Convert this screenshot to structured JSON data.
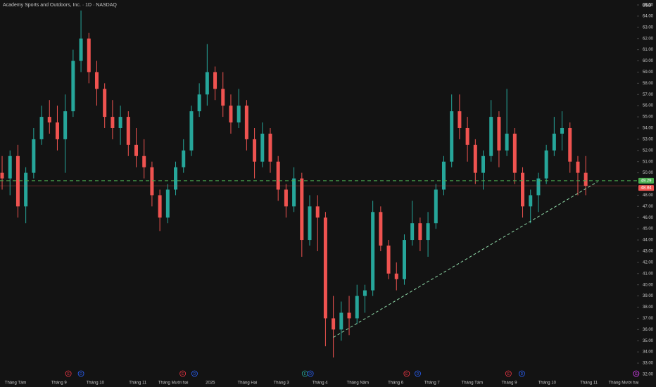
{
  "chart_data": {
    "type": "candlestick",
    "title": "Academy Sports and Outdoors, Inc. · 1D · NASDAQ",
    "currency": "USD",
    "colors": {
      "up": "#26a69a",
      "down": "#ef5350"
    },
    "ohlc": [
      [
        50,
        51.5,
        48.5,
        49.5
      ],
      [
        49.5,
        52,
        48,
        51.5
      ],
      [
        51.5,
        52.5,
        46,
        47
      ],
      [
        47,
        50.5,
        45.5,
        50
      ],
      [
        50,
        54,
        49.5,
        53
      ],
      [
        53,
        56,
        52.5,
        55
      ],
      [
        55,
        56.5,
        53.5,
        54.5
      ],
      [
        54.5,
        56,
        52,
        53
      ],
      [
        53,
        57,
        50,
        55.5
      ],
      [
        55.5,
        61,
        55,
        60
      ],
      [
        60,
        64.5,
        59,
        62
      ],
      [
        62,
        62.5,
        58,
        59
      ],
      [
        59,
        60,
        56,
        57.5
      ],
      [
        57.5,
        58,
        54,
        55
      ],
      [
        55,
        56.5,
        53,
        54
      ],
      [
        54,
        56,
        52.5,
        55
      ],
      [
        55,
        55.5,
        51.5,
        52.5
      ],
      [
        52.5,
        54,
        50.5,
        51.5
      ],
      [
        51.5,
        53,
        49.5,
        50.5
      ],
      [
        50.5,
        51,
        47,
        48
      ],
      [
        48,
        48.5,
        44.8,
        46
      ],
      [
        46,
        49,
        45.5,
        48.5
      ],
      [
        48.5,
        51,
        48,
        50.5
      ],
      [
        50.5,
        53,
        50,
        52
      ],
      [
        52,
        56,
        51.5,
        55.5
      ],
      [
        55.5,
        58,
        55,
        57
      ],
      [
        57,
        61.5,
        56,
        59
      ],
      [
        59,
        59.5,
        56.5,
        57.5
      ],
      [
        57.5,
        59,
        55,
        56
      ],
      [
        56,
        57,
        53.5,
        54.5
      ],
      [
        54.5,
        57.5,
        54,
        56
      ],
      [
        56,
        56.5,
        52,
        53
      ],
      [
        53,
        54,
        49.5,
        51
      ],
      [
        51,
        54.5,
        50.5,
        53.5
      ],
      [
        53.5,
        54,
        50,
        51
      ],
      [
        51,
        51.5,
        47.5,
        48.5
      ],
      [
        48.5,
        49,
        46,
        47
      ],
      [
        47,
        50.5,
        46.5,
        49.5
      ],
      [
        49.5,
        50,
        42.5,
        44
      ],
      [
        44,
        48,
        43.5,
        47
      ],
      [
        47,
        48,
        43,
        46
      ],
      [
        46,
        46.5,
        34.5,
        37
      ],
      [
        37,
        39,
        33.5,
        36
      ],
      [
        36,
        38.5,
        35,
        37.5
      ],
      [
        37.5,
        39,
        35.5,
        37
      ],
      [
        37,
        40,
        36.5,
        39
      ],
      [
        39,
        40,
        37.5,
        39.5
      ],
      [
        39.5,
        47.5,
        39,
        46.5
      ],
      [
        46.5,
        47,
        43,
        43.5
      ],
      [
        43.5,
        44,
        40.5,
        41
      ],
      [
        41,
        42,
        39.5,
        40.5
      ],
      [
        40.5,
        44.5,
        40,
        44
      ],
      [
        44,
        47.5,
        43.5,
        45.5
      ],
      [
        45.5,
        46,
        43,
        44
      ],
      [
        44,
        46.5,
        42.5,
        45.5
      ],
      [
        45.5,
        49,
        45,
        48.5
      ],
      [
        48.5,
        51.5,
        48,
        51
      ],
      [
        51,
        57,
        50.5,
        55.5
      ],
      [
        55.5,
        57,
        53,
        54
      ],
      [
        54,
        55,
        51,
        52.5
      ],
      [
        52.5,
        53,
        49,
        50
      ],
      [
        50,
        52,
        48.5,
        51.5
      ],
      [
        51.5,
        56.5,
        51,
        55
      ],
      [
        55,
        55.5,
        50.5,
        52
      ],
      [
        52,
        57.5,
        51.5,
        53.5
      ],
      [
        53.5,
        54,
        49,
        50
      ],
      [
        50,
        50.5,
        46,
        47
      ],
      [
        47,
        48.5,
        45.5,
        48
      ],
      [
        48,
        50,
        46.5,
        49.5
      ],
      [
        49.5,
        52.5,
        49,
        52
      ],
      [
        52,
        55,
        51.5,
        53.5
      ],
      [
        53.5,
        55.5,
        52,
        54
      ],
      [
        54,
        54.5,
        50,
        51
      ],
      [
        51,
        51.5,
        48,
        50
      ],
      [
        50,
        51.5,
        48,
        48.84
      ]
    ],
    "xlim": [
      -0.27,
      80.5
    ],
    "xticks": [
      {
        "value": 1.7,
        "label": "Tháng Tám"
      },
      {
        "value": 7.2,
        "label": "Tháng 9"
      },
      {
        "value": 11.8,
        "label": "Tháng 10"
      },
      {
        "value": 17.2,
        "label": "Tháng 11"
      },
      {
        "value": 21.7,
        "label": "Tháng Mười hai"
      },
      {
        "value": 26.4,
        "label": "2025"
      },
      {
        "value": 31.1,
        "label": "Tháng Hai"
      },
      {
        "value": 35.4,
        "label": "Tháng 3"
      },
      {
        "value": 40.3,
        "label": "Tháng 4"
      },
      {
        "value": 45.1,
        "label": "Tháng Năm"
      },
      {
        "value": 49.9,
        "label": "Tháng 6"
      },
      {
        "value": 54.5,
        "label": "Tháng 7"
      },
      {
        "value": 59.6,
        "label": "Tháng Tám"
      },
      {
        "value": 64.3,
        "label": "Tháng 9"
      },
      {
        "value": 69.1,
        "label": "Tháng 10"
      },
      {
        "value": 74.4,
        "label": "Tháng 11"
      },
      {
        "value": 78.8,
        "label": "Tháng Mười hai"
      }
    ],
    "ylim": [
      31.62,
      65.44
    ],
    "yticks": [
      {
        "value": 32,
        "label": "32.00"
      },
      {
        "value": 33,
        "label": "33.00"
      },
      {
        "value": 34,
        "label": "34.00"
      },
      {
        "value": 35,
        "label": "35.00"
      },
      {
        "value": 36,
        "label": "36.00"
      },
      {
        "value": 37,
        "label": "37.00"
      },
      {
        "value": 38,
        "label": "38.00"
      },
      {
        "value": 39,
        "label": "39.00"
      },
      {
        "value": 40,
        "label": "40.00"
      },
      {
        "value": 41,
        "label": "41.00"
      },
      {
        "value": 42,
        "label": "42.00"
      },
      {
        "value": 43,
        "label": "43.00"
      },
      {
        "value": 44,
        "label": "44.00"
      },
      {
        "value": 45,
        "label": "45.00"
      },
      {
        "value": 46,
        "label": "46.00"
      },
      {
        "value": 47,
        "label": "47.00"
      },
      {
        "value": 48,
        "label": "48.00"
      },
      {
        "value": 50,
        "label": "50.00"
      },
      {
        "value": 51,
        "label": "51.00"
      },
      {
        "value": 52,
        "label": "52.00"
      },
      {
        "value": 53,
        "label": "53.00"
      },
      {
        "value": 54,
        "label": "54.00"
      },
      {
        "value": 55,
        "label": "55.00"
      },
      {
        "value": 56,
        "label": "56.00"
      },
      {
        "value": 57,
        "label": "57.00"
      },
      {
        "value": 58,
        "label": "58.00"
      },
      {
        "value": 59,
        "label": "59.00"
      },
      {
        "value": 60,
        "label": "60.00"
      },
      {
        "value": 61,
        "label": "61.00"
      },
      {
        "value": 62,
        "label": "62.00"
      },
      {
        "value": 63,
        "label": "63.00"
      },
      {
        "value": 64,
        "label": "64.00"
      },
      {
        "value": 65,
        "label": "65.00"
      }
    ],
    "hline": {
      "value": 49.29,
      "color": "#4caf50"
    },
    "last": {
      "value": 48.84,
      "color": "#ef5350"
    },
    "trendline": {
      "x": [
        42,
        75.5
      ],
      "y": [
        35.3,
        49.2
      ],
      "color": "#8fd9a8"
    },
    "events": [
      {
        "label": "E",
        "x": 8.4,
        "color": "#f23645"
      },
      {
        "label": "D",
        "x": 10,
        "color": "#2962ff"
      },
      {
        "label": "E",
        "x": 22.9,
        "color": "#f23645"
      },
      {
        "label": "D",
        "x": 24.4,
        "color": "#2962ff"
      },
      {
        "label": "E",
        "x": 38.4,
        "color": "#26a69a"
      },
      {
        "label": "D",
        "x": 39.1,
        "color": "#2962ff"
      },
      {
        "label": "E",
        "x": 51.3,
        "color": "#f23645"
      },
      {
        "label": "D",
        "x": 52.7,
        "color": "#2962ff"
      },
      {
        "label": "E",
        "x": 64.2,
        "color": "#f23645"
      },
      {
        "label": "D",
        "x": 65.9,
        "color": "#2962ff"
      },
      {
        "label": "E",
        "x": 80.4,
        "color": "#e040fb"
      }
    ]
  }
}
